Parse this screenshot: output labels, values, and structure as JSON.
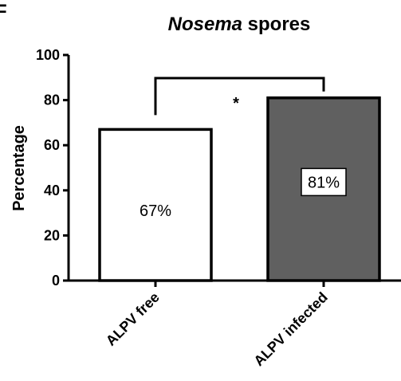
{
  "panel_letter": "F",
  "chart_data": {
    "type": "bar",
    "title_italic": "Nosema",
    "title_rest": "spores",
    "xlabel": "",
    "ylabel": "Percentage",
    "ylim": [
      0,
      100
    ],
    "yticks": [
      "0",
      "20",
      "40",
      "60",
      "80",
      "100"
    ],
    "categories": [
      "ALPV free",
      "ALPV infected"
    ],
    "values": [
      67,
      81
    ],
    "value_labels": [
      "67%",
      "81%"
    ],
    "bar_colors": [
      "#ffffff",
      "#606060"
    ],
    "significance": "*",
    "grid": false
  }
}
